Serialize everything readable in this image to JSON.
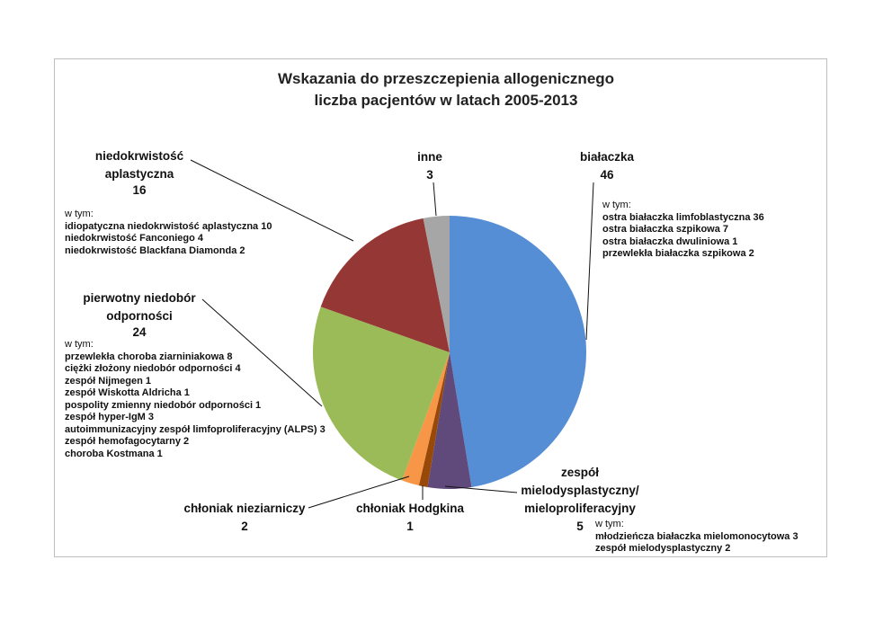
{
  "chart_data": {
    "type": "pie",
    "title": "Wskazania do przeszczepienia allogenicznego",
    "subtitle": "liczba pacjentów w latach 2005-2013",
    "categories": [
      "białaczka",
      "zespół mielodysplastyczny/ mieloproliferacyjny",
      "chłoniak Hodgkina",
      "chłoniak nieziarniczy",
      "pierwotny niedobór odporności",
      "niedokrwistość aplastyczna",
      "inne"
    ],
    "values": [
      46,
      5,
      1,
      2,
      24,
      16,
      3
    ],
    "colors": [
      "#558ed5",
      "#604a7b",
      "#984807",
      "#f79646",
      "#9bbb59",
      "#953735",
      "#a6a6a6"
    ],
    "annotations": [
      {
        "heading": "w tym:",
        "lines": [
          "ostra białaczka limfoblastyczna 36",
          "ostra białaczka szpikowa  7",
          "ostra białaczka dwuliniowa  1",
          "przewlekła białaczka szpikowa  2"
        ]
      },
      {
        "heading": "w tym:",
        "lines": [
          "idiopatyczna niedokrwistość aplastyczna 10",
          "niedokrwistość Fanconiego 4",
          "niedokrwistość Blackfana Diamonda 2"
        ]
      },
      {
        "heading": "w tym:",
        "lines": [
          "przewlekła choroba ziarniniakowa 8",
          "ciężki złożony niedobór odporności 4",
          "zespół Nijmegen 1",
          "zespół Wiskotta Aldricha 1",
          "pospolity zmienny niedobór odporności 1",
          "zespół hyper-IgM 3",
          "autoimmunizacyjny zespół limfoproliferacyjny (ALPS) 3",
          "zespół hemofagocytarny 2",
          "choroba Kostmana 1"
        ]
      },
      {
        "heading": "w tym:",
        "lines": [
          "młodzieńcza białaczka mielomonocytowa 3",
          "zespół mielodysplastyczny 2"
        ]
      }
    ]
  }
}
